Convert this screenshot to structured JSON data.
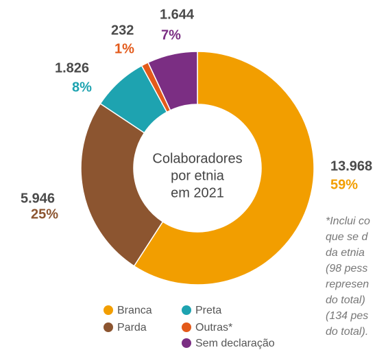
{
  "chart_data": {
    "type": "pie",
    "center_text": [
      "Colaboradores",
      "por etnia",
      "em 2021"
    ],
    "categories": [
      "Branca",
      "Parda",
      "Preta",
      "Outras*",
      "Sem declaração"
    ],
    "values": [
      13968,
      5946,
      1826,
      232,
      1644
    ],
    "value_labels": [
      "13.968",
      "5.946",
      "1.826",
      "232",
      "1.644"
    ],
    "percent_labels": [
      "59%",
      "25%",
      "8%",
      "1%",
      "7%"
    ],
    "colors": [
      "#f29e00",
      "#8c5530",
      "#1ea3b0",
      "#e35a1a",
      "#7b2e83"
    ],
    "footnote": [
      "*Inclui co",
      "que se d",
      "da etnia",
      "(98 pess",
      "represen",
      "do total)",
      "(134 pes",
      "do total)."
    ]
  }
}
